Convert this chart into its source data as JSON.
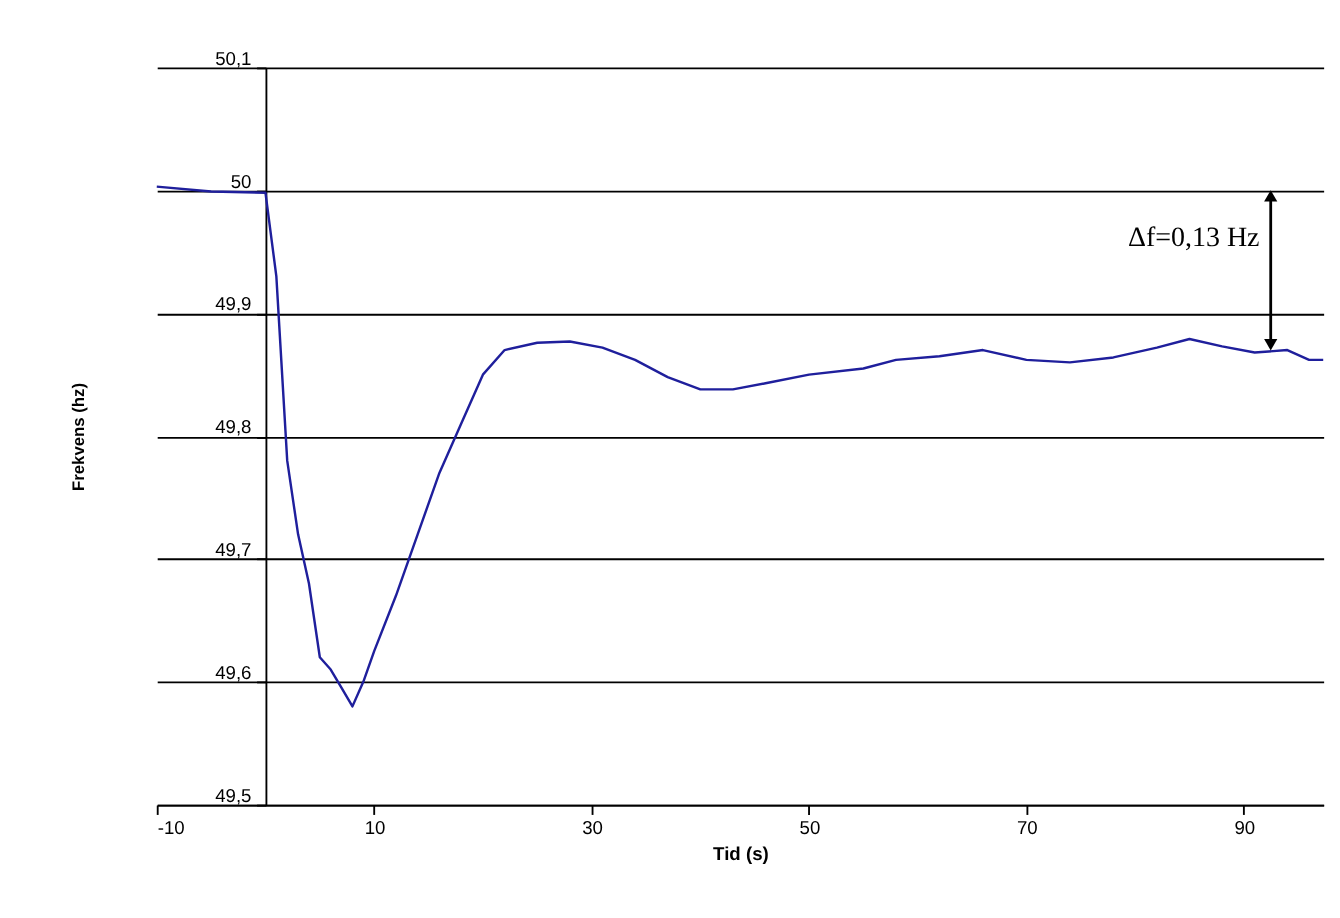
{
  "chart_data": {
    "type": "line",
    "xlabel": "Tid (s)",
    "ylabel": "Frekvens (hz)",
    "x": [
      -10,
      -5,
      0,
      1,
      2,
      3,
      4,
      5,
      6,
      7,
      8,
      9,
      10,
      12,
      14,
      16,
      18,
      20,
      22,
      25,
      28,
      31,
      34,
      37,
      40,
      43,
      46,
      50,
      55,
      58,
      62,
      66,
      70,
      74,
      78,
      82,
      85,
      88,
      91,
      94,
      96,
      97.3
    ],
    "series": [
      {
        "color": "#1f1f9c",
        "values": [
          50.003,
          49.999,
          49.998,
          49.93,
          49.78,
          49.72,
          49.68,
          49.62,
          49.61,
          49.595,
          49.58,
          49.6,
          49.625,
          49.67,
          49.72,
          49.77,
          49.81,
          49.85,
          49.87,
          49.876,
          49.877,
          49.872,
          49.862,
          49.848,
          49.838,
          49.838,
          49.843,
          49.85,
          49.855,
          49.862,
          49.865,
          49.87,
          49.862,
          49.86,
          49.864,
          49.872,
          49.879,
          49.873,
          49.868,
          49.87,
          49.862,
          49.862
        ]
      }
    ],
    "xlim": [
      -10,
      97.3
    ],
    "xticks": [
      -10,
      10,
      30,
      50,
      70,
      90
    ],
    "ylim": [
      49.5,
      50.1
    ],
    "yticks": [
      {
        "value": 49.5,
        "label": "49,5"
      },
      {
        "value": 49.6,
        "label": "49,6"
      },
      {
        "value": 49.7,
        "label": "49,7"
      },
      {
        "value": 49.8,
        "label": "49,8"
      },
      {
        "value": 49.9,
        "label": "49,9"
      },
      {
        "value": 50,
        "label": "50"
      },
      {
        "value": 50.1,
        "label": "50,1"
      }
    ],
    "grid": "y",
    "marker": "none",
    "line_style": "solid",
    "annotations": [
      "Δf=0,13 Hz"
    ]
  }
}
